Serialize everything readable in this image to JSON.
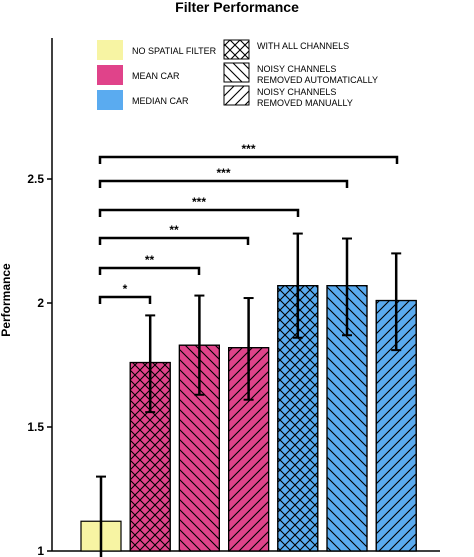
{
  "chart_data": {
    "type": "bar",
    "title": "Filter Performance",
    "xlabel": "",
    "ylabel": "Performance",
    "ylim": [
      1,
      3.1
    ],
    "yticks": [
      "1",
      "1.5",
      "2",
      "2.5"
    ],
    "ytick_values": [
      1,
      1.5,
      2,
      2.5
    ],
    "bars": [
      {
        "value": 1.12,
        "err_low": 0.95,
        "err_high": 1.3,
        "filter": "NO SPATIAL FILTER",
        "channels": "WITH ALL CHANNELS"
      },
      {
        "value": 1.76,
        "err_low": 1.56,
        "err_high": 1.95,
        "filter": "MEAN CAR",
        "channels": "WITH ALL CHANNELS"
      },
      {
        "value": 1.83,
        "err_low": 1.63,
        "err_high": 2.03,
        "filter": "MEAN CAR",
        "channels": "NOISY CHANNELS REMOVED AUTOMATICALLY"
      },
      {
        "value": 1.82,
        "err_low": 1.61,
        "err_high": 2.02,
        "filter": "MEAN CAR",
        "channels": "NOISY CHANNELS REMOVED MANUALLY"
      },
      {
        "value": 2.07,
        "err_low": 1.86,
        "err_high": 2.28,
        "filter": "MEDIAN CAR",
        "channels": "WITH ALL CHANNELS"
      },
      {
        "value": 2.07,
        "err_low": 1.87,
        "err_high": 2.26,
        "filter": "MEDIAN CAR",
        "channels": "NOISY CHANNELS REMOVED AUTOMATICALLY"
      },
      {
        "value": 2.01,
        "err_low": 1.81,
        "err_high": 2.2,
        "filter": "MEDIAN CAR",
        "channels": "NOISY CHANNELS REMOVED MANUALLY"
      }
    ],
    "legend": {
      "filters": [
        {
          "label": "NO SPATIAL FILTER",
          "color": "#f7f4a3"
        },
        {
          "label": "MEAN CAR",
          "color": "#e0438a"
        },
        {
          "label": "MEDIAN CAR",
          "color": "#5aabf0"
        }
      ],
      "channels": [
        {
          "lines": [
            "WITH ALL CHANNELS"
          ],
          "pattern": "crosshatch"
        },
        {
          "lines": [
            "NOISY CHANNELS",
            "REMOVED AUTOMATICALLY"
          ],
          "pattern": "diag-back"
        },
        {
          "lines": [
            "NOISY CHANNELS",
            "REMOVED MANUALLY"
          ],
          "pattern": "diag-fwd"
        }
      ]
    },
    "significance": [
      {
        "from": 0,
        "to": 1,
        "label": "*"
      },
      {
        "from": 0,
        "to": 2,
        "label": "**"
      },
      {
        "from": 0,
        "to": 4,
        "label": "**"
      },
      {
        "from": 0,
        "to": 5,
        "label": "***"
      },
      {
        "from": 0,
        "to": 6,
        "label": "***"
      },
      {
        "from": 0,
        "to": 7,
        "label": "***"
      }
    ]
  }
}
